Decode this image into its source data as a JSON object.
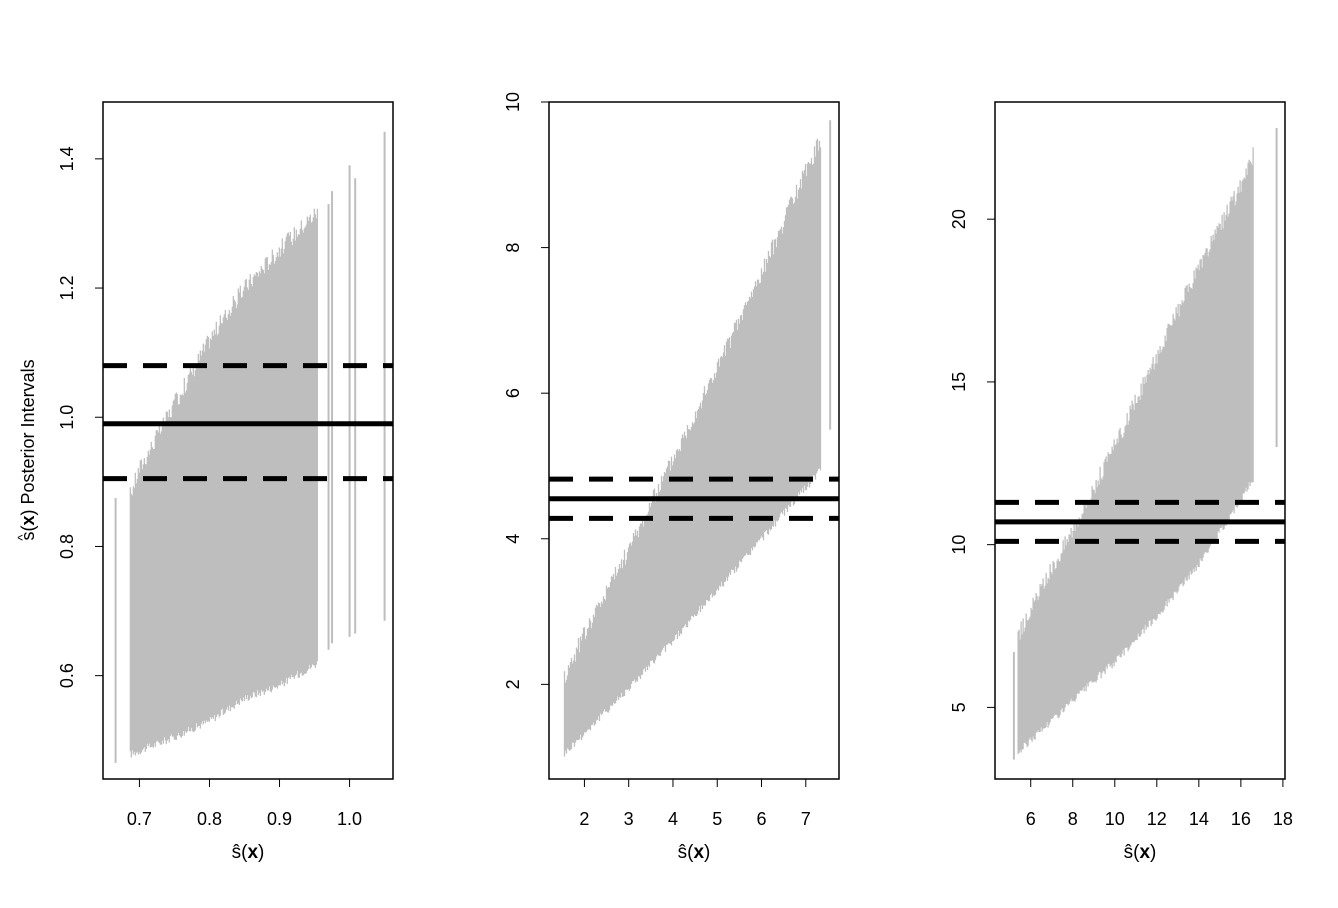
{
  "figure": {
    "ylabel_hat": "^",
    "ylabel_s": "s",
    "ylabel_open": "(",
    "ylabel_x": "x",
    "ylabel_rest": ") Posterior Intervals"
  },
  "chart_data": [
    {
      "type": "interval",
      "xlabel": "ŝ(x)",
      "ylabel": "ŝ(x) Posterior Intervals",
      "xlim": [
        0.648,
        1.062
      ],
      "ylim": [
        0.44,
        1.488
      ],
      "xticks": [
        0.7,
        0.8,
        0.9,
        1.0
      ],
      "xtick_labels": [
        "0.7",
        "0.8",
        "0.9",
        "1.0"
      ],
      "yticks": [
        0.6,
        0.8,
        1.0,
        1.2,
        1.4
      ],
      "ytick_labels": [
        "0.6",
        "0.8",
        "1.0",
        "1.2",
        "1.4"
      ],
      "interval_color": "#bebebe",
      "x_range": [
        0.687,
        0.955
      ],
      "lower_line": [
        [
          0.687,
          0.478
        ],
        [
          0.75,
          0.505
        ],
        [
          0.8,
          0.53
        ],
        [
          0.85,
          0.565
        ],
        [
          0.9,
          0.585
        ],
        [
          0.955,
          0.62
        ]
      ],
      "upper_line": [
        [
          0.687,
          0.88
        ],
        [
          0.7,
          0.92
        ],
        [
          0.75,
          1.02
        ],
        [
          0.8,
          1.12
        ],
        [
          0.85,
          1.2
        ],
        [
          0.9,
          1.26
        ],
        [
          0.955,
          1.32
        ]
      ],
      "isolated_intervals": [
        [
          0.666,
          0.465,
          0.875
        ],
        [
          0.97,
          0.64,
          1.33
        ],
        [
          0.975,
          0.65,
          1.35
        ],
        [
          1.0,
          0.66,
          1.39
        ],
        [
          1.008,
          0.665,
          1.37
        ],
        [
          1.05,
          0.685,
          1.442
        ]
      ],
      "hlines": [
        {
          "value": 0.99,
          "style": "solid"
        },
        {
          "value": 1.08,
          "style": "dashed"
        },
        {
          "value": 0.905,
          "style": "dashed"
        }
      ]
    },
    {
      "type": "interval",
      "xlabel": "ŝ(x)",
      "xlim": [
        1.2,
        7.75
      ],
      "ylim": [
        0.7,
        10.0
      ],
      "xticks": [
        2,
        3,
        4,
        5,
        6,
        7
      ],
      "xtick_labels": [
        "2",
        "3",
        "4",
        "5",
        "6",
        "7"
      ],
      "yticks": [
        2,
        4,
        6,
        8,
        10
      ],
      "ytick_labels": [
        "2",
        "4",
        "6",
        "8",
        "10"
      ],
      "interval_color": "#bebebe",
      "x_range": [
        1.55,
        7.35
      ],
      "lower_line": [
        [
          1.55,
          1.05
        ],
        [
          3,
          1.95
        ],
        [
          4,
          2.6
        ],
        [
          5,
          3.3
        ],
        [
          6,
          4.0
        ],
        [
          7,
          4.7
        ],
        [
          7.35,
          4.95
        ]
      ],
      "upper_line": [
        [
          1.55,
          2.1
        ],
        [
          2,
          2.7
        ],
        [
          3,
          3.85
        ],
        [
          4,
          5.1
        ],
        [
          5,
          6.35
        ],
        [
          6,
          7.65
        ],
        [
          7,
          9.05
        ],
        [
          7.35,
          9.5
        ]
      ],
      "isolated_intervals": [
        [
          7.55,
          5.5,
          9.75
        ]
      ],
      "hlines": [
        {
          "value": 4.55,
          "style": "solid"
        },
        {
          "value": 4.82,
          "style": "dashed"
        },
        {
          "value": 4.28,
          "style": "dashed"
        }
      ]
    },
    {
      "type": "interval",
      "xlabel": "ŝ(x)",
      "xlim": [
        4.3,
        18.1
      ],
      "ylim": [
        2.8,
        23.6
      ],
      "xticks": [
        6,
        8,
        10,
        12,
        14,
        16,
        18
      ],
      "xtick_labels": [
        "6",
        "8",
        "10",
        "12",
        "14",
        "16",
        "18"
      ],
      "yticks": [
        5,
        10,
        15,
        20
      ],
      "ytick_labels": [
        "5",
        "10",
        "15",
        "20"
      ],
      "interval_color": "#bebebe",
      "x_range": [
        5.4,
        16.6
      ],
      "lower_line": [
        [
          5.4,
          3.6
        ],
        [
          6,
          4.0
        ],
        [
          8,
          5.2
        ],
        [
          10,
          6.4
        ],
        [
          12,
          7.8
        ],
        [
          14,
          9.4
        ],
        [
          16,
          11.4
        ],
        [
          16.6,
          12.0
        ]
      ],
      "upper_line": [
        [
          5.4,
          7.2
        ],
        [
          6,
          8.0
        ],
        [
          8,
          10.5
        ],
        [
          10,
          13.0
        ],
        [
          12,
          15.8
        ],
        [
          14,
          18.5
        ],
        [
          16,
          21.0
        ],
        [
          16.6,
          22.0
        ]
      ],
      "isolated_intervals": [
        [
          5.2,
          3.4,
          6.7
        ],
        [
          17.7,
          13.0,
          22.8
        ]
      ],
      "hlines": [
        {
          "value": 10.7,
          "style": "solid"
        },
        {
          "value": 11.3,
          "style": "dashed"
        },
        {
          "value": 10.1,
          "style": "dashed"
        }
      ]
    }
  ]
}
